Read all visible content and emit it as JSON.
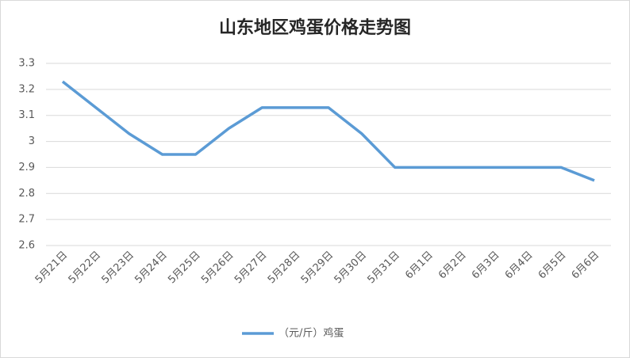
{
  "chart_data": {
    "type": "line",
    "title": "山东地区鸡蛋价格走势图",
    "categories": [
      "5月21日",
      "5月22日",
      "5月23日",
      "5月24日",
      "5月25日",
      "5月26日",
      "5月27日",
      "5月28日",
      "5月29日",
      "5月30日",
      "5月31日",
      "6月1日",
      "6月2日",
      "6月3日",
      "6月4日",
      "6月5日",
      "6月6日"
    ],
    "series": [
      {
        "name": "（元/斤）鸡蛋",
        "color": "#5b9bd5",
        "values": [
          3.23,
          3.13,
          3.03,
          2.95,
          2.95,
          3.05,
          3.13,
          3.13,
          3.13,
          3.03,
          2.9,
          2.9,
          2.9,
          2.9,
          2.9,
          2.9,
          2.85
        ]
      }
    ],
    "ylim": [
      2.6,
      3.3
    ],
    "yticks": [
      2.6,
      2.7,
      2.8,
      2.9,
      3,
      3.1,
      3.2,
      3.3
    ],
    "grid": true,
    "legend": "bottom"
  }
}
